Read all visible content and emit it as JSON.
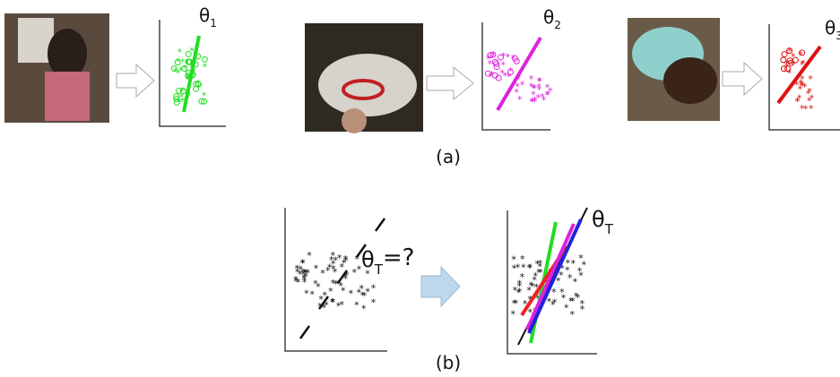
{
  "panel_a": {
    "label": "(a)",
    "thetas": [
      {
        "symbol": "θ",
        "subscript": "1"
      },
      {
        "symbol": "θ",
        "subscript": "2"
      },
      {
        "symbol": "θ",
        "subscript": "3"
      }
    ]
  },
  "panel_b": {
    "label": "(b)",
    "question": {
      "symbol": "θ",
      "subscript": "T",
      "suffix": "=?"
    },
    "answer": {
      "symbol": "θ",
      "subscript": "T"
    }
  }
}
